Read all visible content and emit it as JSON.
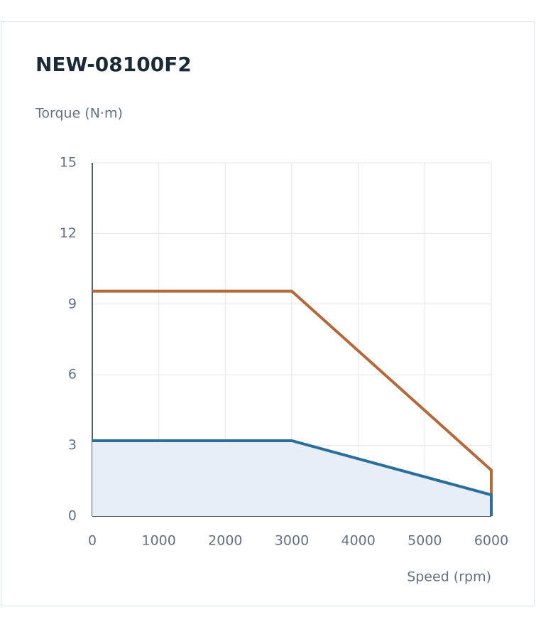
{
  "chart_data": {
    "type": "line",
    "title": "NEW-08100F2",
    "y_label": "Torque (N·m)",
    "x_label": "Speed (rpm)",
    "xlim": [
      0,
      6000
    ],
    "xticks": [
      0,
      1000,
      2000,
      3000,
      4000,
      5000,
      6000
    ],
    "ylim": [
      0,
      15
    ],
    "yticks": [
      0,
      3,
      6,
      9,
      12,
      15
    ],
    "grid": true,
    "series": [
      {
        "color": "#b5693a",
        "x": [
          0,
          3000,
          6000,
          6000
        ],
        "values": [
          9.55,
          9.55,
          1.95,
          0
        ]
      },
      {
        "color": "#2a6f9b",
        "fill": "#e8eef7",
        "x": [
          0,
          3000,
          6000,
          6000
        ],
        "values": [
          3.2,
          3.2,
          0.9,
          0
        ]
      }
    ]
  }
}
